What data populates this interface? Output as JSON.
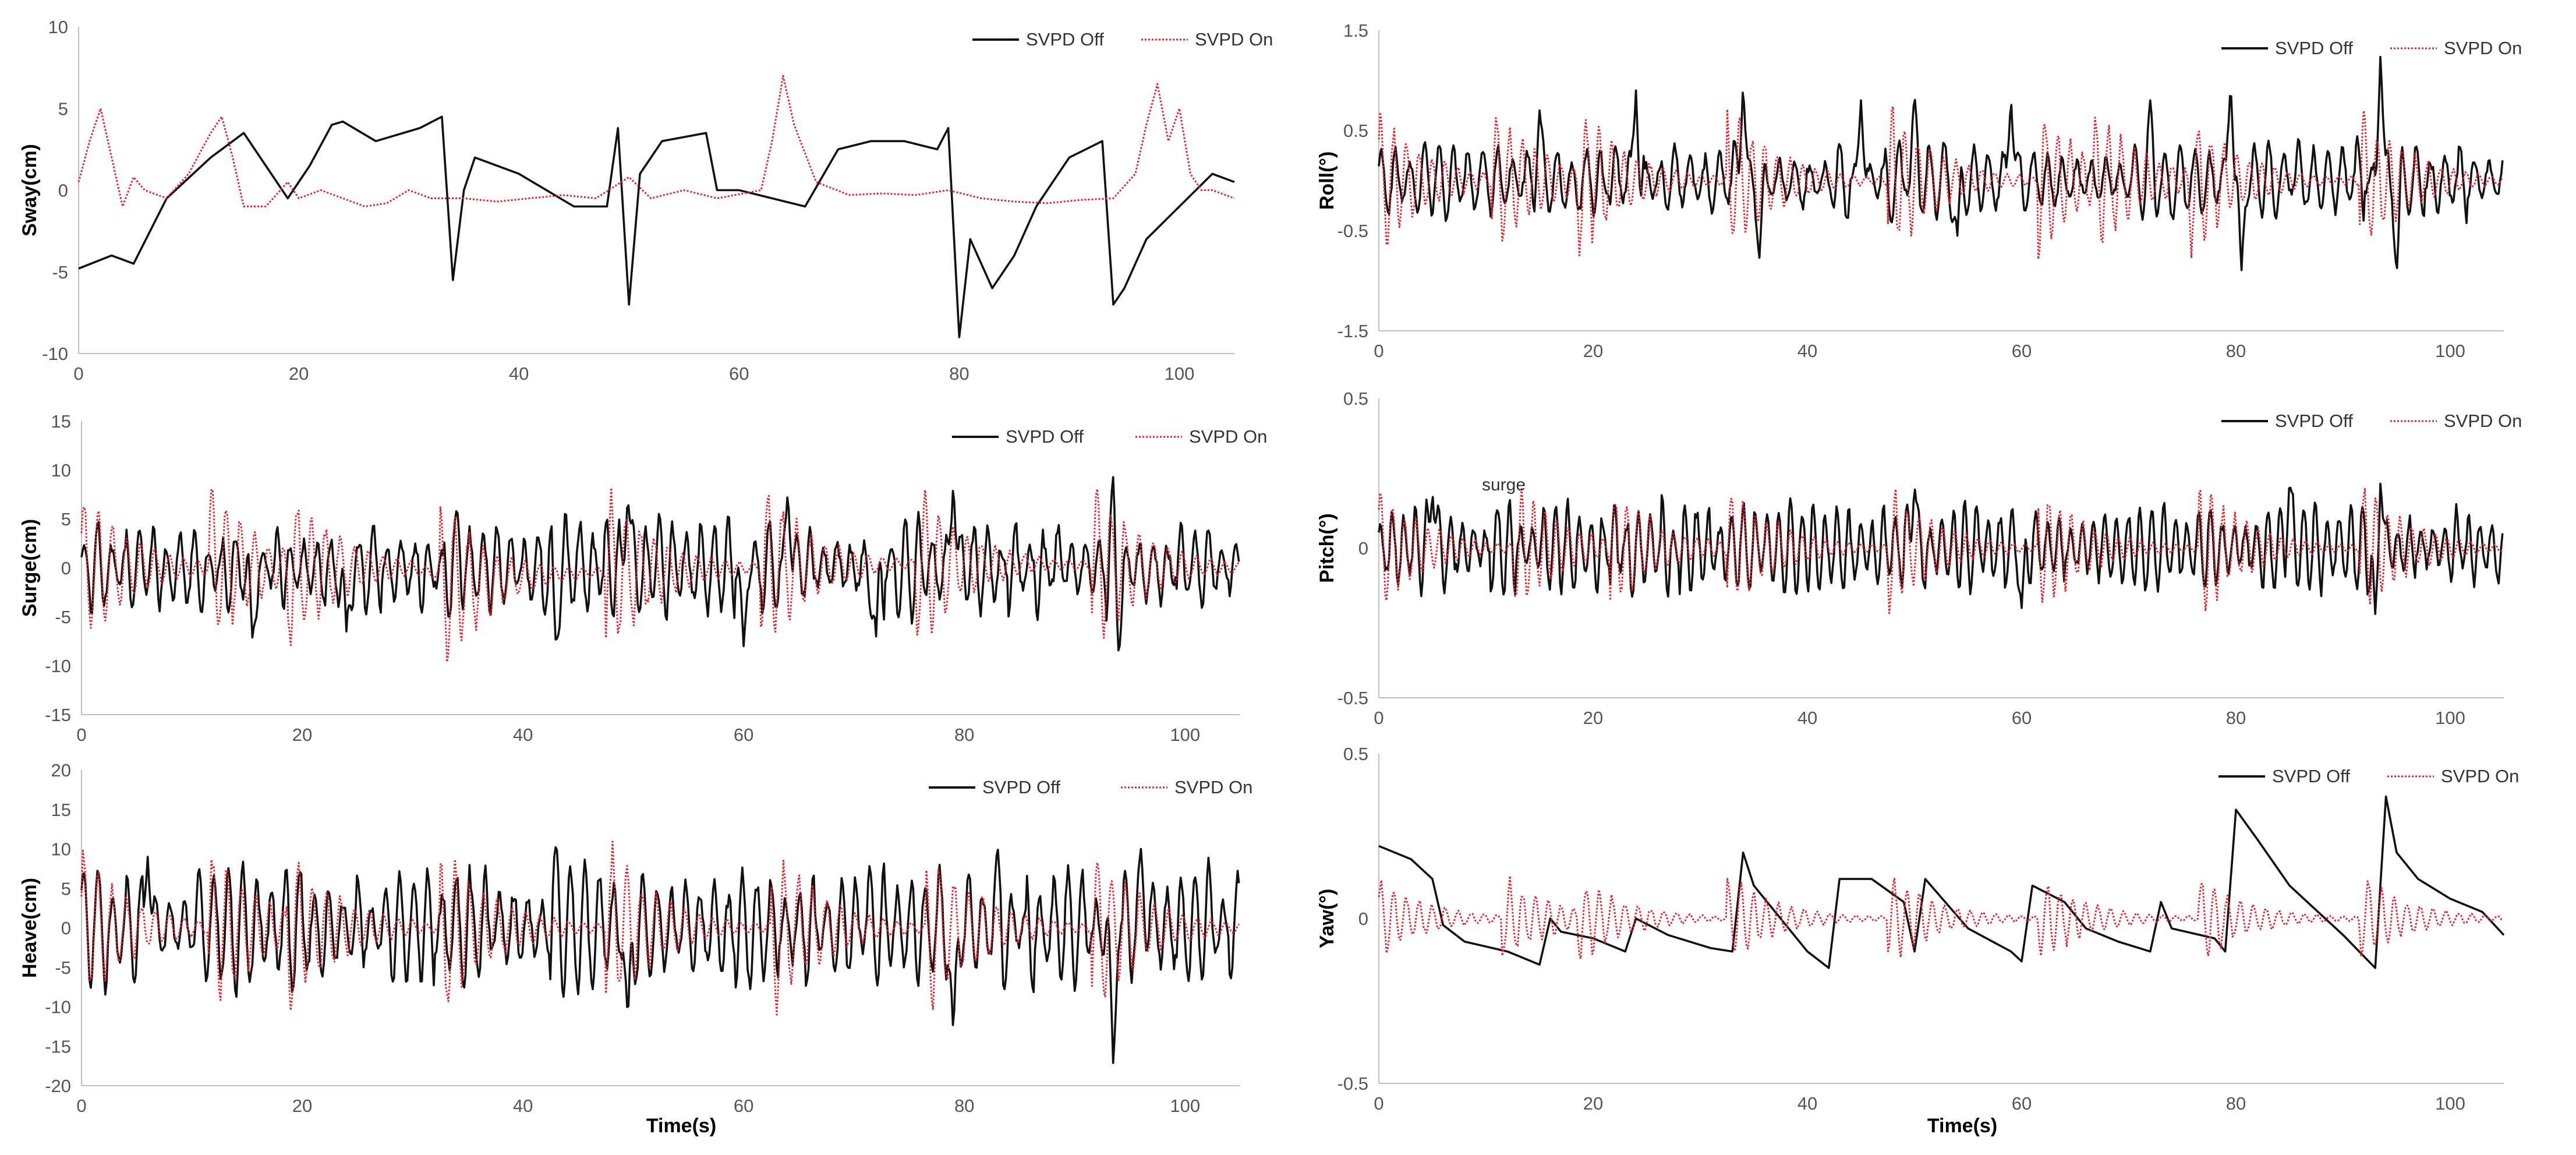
{
  "figure": {
    "colors": {
      "off": "#111111",
      "on": "#e8202a",
      "axis": "#bfbfbf",
      "text": "#555555"
    },
    "stray_text": "surge"
  },
  "chart_data": [
    {
      "type": "line",
      "id": "sway",
      "ylabel": "Sway(cm)",
      "xlabel": "",
      "xlim": [
        0,
        105
      ],
      "ylim": [
        -10,
        10
      ],
      "xticks": [
        0,
        20,
        40,
        60,
        80,
        100
      ],
      "yticks": [
        -10,
        -5,
        0,
        5,
        10
      ],
      "tick_labels_y": [
        "-10",
        "-5",
        "0",
        "5",
        "10"
      ],
      "legend": [
        "SVPD Off",
        "SVPD On"
      ],
      "series": [
        {
          "name": "SVPD Off",
          "style": "solid",
          "color": "#111111",
          "x": [
            0,
            3,
            5,
            8,
            12,
            15,
            19,
            21,
            23,
            24,
            27,
            31,
            33,
            34,
            35,
            36,
            40,
            45,
            48,
            49,
            50,
            51,
            53,
            57,
            58,
            60,
            63,
            66,
            69,
            72,
            75,
            78,
            79,
            80,
            81,
            83,
            85,
            87,
            90,
            93,
            94,
            95,
            97,
            100,
            103,
            105
          ],
          "y": [
            -4.8,
            -4,
            -4.5,
            -0.5,
            2,
            3.5,
            -0.5,
            1.5,
            4,
            4.2,
            3,
            3.8,
            4.5,
            -5.5,
            0,
            2,
            1,
            -1,
            -1,
            3.8,
            -7,
            1,
            3,
            3.5,
            0,
            0,
            -0.5,
            -1,
            2.5,
            3,
            3,
            2.5,
            3.8,
            -9,
            -3,
            -6,
            -4,
            -1,
            2,
            3,
            -7,
            -6,
            -3,
            -1,
            1,
            0.5
          ]
        },
        {
          "name": "SVPD On",
          "style": "dotted",
          "color": "#e8202a",
          "x": [
            0,
            1,
            2,
            3,
            4,
            5,
            6,
            8,
            10,
            12,
            13,
            14,
            15,
            17,
            19,
            20,
            22,
            24,
            26,
            28,
            30,
            32,
            35,
            38,
            41,
            44,
            47,
            50,
            52,
            55,
            58,
            62,
            63,
            64,
            65,
            67,
            70,
            73,
            76,
            79,
            82,
            85,
            88,
            91,
            94,
            96,
            97,
            98,
            99,
            100,
            101,
            102,
            103,
            105
          ],
          "y": [
            0.5,
            3,
            5,
            2,
            -1,
            0.8,
            0,
            -0.5,
            1,
            3.5,
            4.5,
            2,
            -1,
            -1,
            0.5,
            -0.5,
            0,
            -0.5,
            -1,
            -0.8,
            0,
            -0.5,
            -0.5,
            -0.7,
            -0.5,
            -0.3,
            -0.5,
            0.8,
            -0.5,
            0,
            -0.5,
            0,
            3,
            7,
            4,
            0.5,
            -0.3,
            -0.2,
            -0.3,
            0,
            -0.5,
            -0.7,
            -0.8,
            -0.6,
            -0.5,
            1,
            4,
            6.5,
            3,
            5,
            1,
            0,
            0,
            -0.5
          ]
        }
      ]
    },
    {
      "type": "line",
      "id": "surge",
      "ylabel": "Surge(cm)",
      "xlabel": "",
      "xlim": [
        0,
        105
      ],
      "ylim": [
        -15,
        15
      ],
      "xticks": [
        0,
        20,
        40,
        60,
        80,
        100
      ],
      "yticks": [
        -15,
        -10,
        -5,
        0,
        5,
        10,
        15
      ],
      "tick_labels_y": [
        "-15",
        "-10",
        "-5",
        "0",
        "5",
        "10",
        "15"
      ],
      "legend": [
        "SVPD Off",
        "SVPD On"
      ],
      "series": [
        {
          "name": "SVPD Off",
          "style": "solid",
          "color": "#111111",
          "gen": "osc",
          "amp": 4.5,
          "period": 1.25,
          "seed": 3,
          "spikes": [
            [
              15.5,
              -7.5
            ],
            [
              24,
              -6.5
            ],
            [
              34,
              6
            ],
            [
              43,
              -8
            ],
            [
              49.5,
              7.5
            ],
            [
              60,
              -8
            ],
            [
              64,
              8
            ],
            [
              72,
              -7
            ],
            [
              79,
              9
            ],
            [
              93.5,
              9.5
            ],
            [
              94,
              -9
            ]
          ]
        },
        {
          "name": "SVPD On",
          "style": "dotted",
          "color": "#e8202a",
          "gen": "decay",
          "amp": 8,
          "period": 1.3,
          "seed": 11,
          "bursts": [
            0,
            12,
            19,
            33,
            48,
            62,
            76,
            92
          ],
          "trend": [
            [
              0,
              0
            ],
            [
              30,
              0
            ],
            [
              35,
              -1.5
            ],
            [
              45,
              -0.5
            ],
            [
              60,
              0
            ],
            [
              80,
              0.5
            ],
            [
              105,
              0
            ]
          ]
        }
      ]
    },
    {
      "type": "line",
      "id": "heave",
      "ylabel": "Heave(cm)",
      "xlabel": "Time(s)",
      "xlim": [
        0,
        105
      ],
      "ylim": [
        -20,
        20
      ],
      "xticks": [
        0,
        20,
        40,
        60,
        80,
        100
      ],
      "yticks": [
        -20,
        -15,
        -10,
        -5,
        0,
        5,
        10,
        15,
        20
      ],
      "tick_labels_y": [
        "-20",
        "-15",
        "-10",
        "-5",
        "0",
        "5",
        "10",
        "15",
        "20"
      ],
      "legend": [
        "SVPD Off",
        "SVPD On"
      ],
      "series": [
        {
          "name": "SVPD Off",
          "style": "solid",
          "color": "#111111",
          "gen": "osc",
          "amp": 7,
          "period": 1.3,
          "seed": 5,
          "spikes": [
            [
              6,
              9
            ],
            [
              43,
              10.5
            ],
            [
              49.5,
              -12
            ],
            [
              79,
              -14
            ],
            [
              83,
              10.5
            ],
            [
              93.5,
              -18
            ],
            [
              96,
              10
            ]
          ]
        },
        {
          "name": "SVPD On",
          "style": "dotted",
          "color": "#e8202a",
          "gen": "decay",
          "amp": 10,
          "period": 1.3,
          "seed": 17,
          "bursts": [
            0,
            12,
            19,
            33,
            48,
            63,
            77,
            92
          ],
          "trend": [
            [
              0,
              0
            ],
            [
              105,
              0
            ]
          ]
        }
      ]
    },
    {
      "type": "line",
      "id": "roll",
      "ylabel": "Roll(°)",
      "xlabel": "",
      "xlim": [
        0,
        105
      ],
      "ylim": [
        -1.5,
        1.5
      ],
      "xticks": [
        0,
        20,
        40,
        60,
        80,
        100
      ],
      "yticks": [
        -1.5,
        -0.5,
        0.5,
        1.5
      ],
      "tick_labels_y": [
        "-1.5",
        "-0.5",
        "0.5",
        "1.5"
      ],
      "legend": [
        "SVPD Off",
        "SVPD On"
      ],
      "series": [
        {
          "name": "SVPD Off",
          "style": "solid",
          "color": "#111111",
          "gen": "osc",
          "amp": 0.35,
          "period": 1.4,
          "seed": 7,
          "spikes": [
            [
              15,
              0.7
            ],
            [
              24,
              0.9
            ],
            [
              34,
              1.0
            ],
            [
              35.5,
              -0.8
            ],
            [
              45,
              0.8
            ],
            [
              50,
              0.85
            ],
            [
              54,
              -0.55
            ],
            [
              59,
              0.85
            ],
            [
              72,
              0.8
            ],
            [
              79.5,
              1.0
            ],
            [
              80.5,
              -0.95
            ],
            [
              93.5,
              1.3
            ],
            [
              95,
              -0.95
            ]
          ]
        },
        {
          "name": "SVPD On",
          "style": "dotted",
          "color": "#e8202a",
          "gen": "decay",
          "amp": 0.7,
          "period": 1.2,
          "seed": 19,
          "bursts": [
            0,
            11,
            19,
            33,
            48,
            62,
            67,
            76,
            92
          ],
          "trend": [
            [
              0,
              0
            ],
            [
              105,
              0
            ]
          ]
        }
      ]
    },
    {
      "type": "line",
      "id": "pitch",
      "ylabel": "Pitch(°)",
      "xlabel": "",
      "xlim": [
        0,
        105
      ],
      "ylim": [
        -0.5,
        0.5
      ],
      "xticks": [
        0,
        20,
        40,
        60,
        80,
        100
      ],
      "yticks": [
        -0.5,
        0,
        0.5
      ],
      "tick_labels_y": [
        "-0.5",
        "0",
        "0.5"
      ],
      "legend": [
        "SVPD Off",
        "SVPD On"
      ],
      "series": [
        {
          "name": "SVPD Off",
          "style": "solid",
          "color": "#111111",
          "gen": "osc",
          "amp": 0.14,
          "period": 1.1,
          "seed": 9,
          "spikes": [
            [
              5,
              0.2
            ],
            [
              50,
              0.22
            ],
            [
              60,
              -0.2
            ],
            [
              85,
              0.22
            ],
            [
              93.5,
              0.23
            ],
            [
              93,
              -0.22
            ]
          ]
        },
        {
          "name": "SVPD On",
          "style": "dotted",
          "color": "#e8202a",
          "gen": "decay",
          "amp": 0.2,
          "period": 1.1,
          "seed": 23,
          "bursts": [
            0,
            13,
            22,
            33,
            48,
            62,
            77,
            92
          ],
          "trend": [
            [
              0,
              0
            ],
            [
              105,
              0
            ]
          ]
        }
      ]
    },
    {
      "type": "line",
      "id": "yaw",
      "ylabel": "Yaw(°)",
      "xlabel": "Time(s)",
      "xlim": [
        0,
        105
      ],
      "ylim": [
        -0.5,
        0.5
      ],
      "xticks": [
        0,
        20,
        40,
        60,
        80,
        100
      ],
      "yticks": [
        -0.5,
        0,
        0.5
      ],
      "tick_labels_y": [
        "-0.5",
        "0",
        "0.5"
      ],
      "legend": [
        "SVPD Off",
        "SVPD On"
      ],
      "series": [
        {
          "name": "SVPD Off",
          "style": "solid",
          "color": "#111111",
          "x": [
            0,
            3,
            5,
            6,
            8,
            12,
            15,
            16,
            17,
            20,
            23,
            24,
            27,
            31,
            33,
            34,
            35,
            37,
            40,
            42,
            43,
            46,
            49,
            50,
            51,
            55,
            59,
            60,
            61,
            64,
            66,
            69,
            72,
            73,
            74,
            78,
            79,
            80,
            82,
            85,
            90,
            93,
            94,
            95,
            97,
            100,
            103,
            105
          ],
          "y": [
            0.22,
            0.18,
            0.12,
            -0.02,
            -0.07,
            -0.1,
            -0.14,
            0,
            -0.04,
            -0.06,
            -0.1,
            0,
            -0.05,
            -0.09,
            -0.1,
            0.2,
            0.1,
            0.02,
            -0.1,
            -0.15,
            0.12,
            0.12,
            0.05,
            -0.1,
            0.12,
            -0.03,
            -0.1,
            -0.13,
            0.1,
            0.05,
            -0.03,
            -0.07,
            -0.1,
            0.05,
            -0.03,
            -0.06,
            -0.1,
            0.33,
            0.24,
            0.1,
            -0.05,
            -0.15,
            0.37,
            0.2,
            0.12,
            0.06,
            0.02,
            -0.05
          ]
        },
        {
          "name": "SVPD On",
          "style": "dotted",
          "color": "#e8202a",
          "gen": "decay",
          "amp": 0.12,
          "period": 1.2,
          "seed": 29,
          "bursts": [
            0,
            12,
            19,
            33,
            48,
            62,
            77,
            92
          ],
          "trend": [
            [
              0,
              0
            ],
            [
              105,
              0
            ]
          ]
        }
      ]
    }
  ]
}
